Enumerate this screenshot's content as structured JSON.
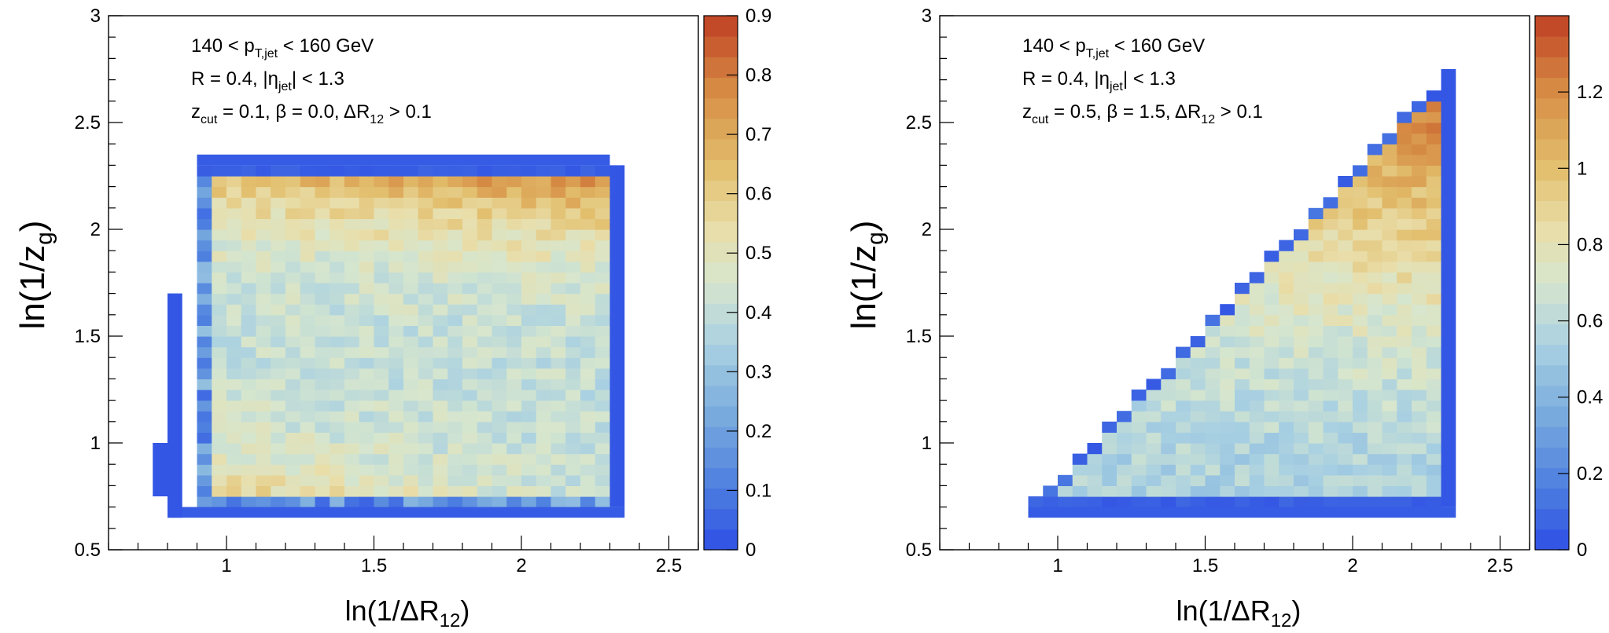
{
  "chart_data": [
    {
      "type": "heatmap",
      "panel": "left",
      "xlabel": {
        "main": "ln(1/ΔR",
        "sub": "12",
        "close": ")"
      },
      "ylabel": {
        "main": "ln(1/z",
        "sub": "g",
        "close": ")"
      },
      "xlim": [
        0.6,
        2.6
      ],
      "ylim": [
        0.5,
        3.0
      ],
      "x_ticks": [
        "1",
        "1.5",
        "2",
        "2.5"
      ],
      "y_ticks": [
        "0.5",
        "1",
        "1.5",
        "2",
        "2.5",
        "3"
      ],
      "colorbar": {
        "min": 0,
        "max": 0.9,
        "ticks": [
          "0",
          "0.1",
          "0.2",
          "0.3",
          "0.4",
          "0.5",
          "0.6",
          "0.7",
          "0.8",
          "0.9"
        ]
      },
      "annotations": [
        {
          "pre": "140 < p",
          "sub": "T,jet",
          "post": " < 160 GeV"
        },
        {
          "pre": "R = 0.4, |η",
          "sub": "jet",
          "post": "| < 1.3"
        },
        {
          "pre": "z",
          "sub": "cut",
          "mid": " = 0.1,   β = 0.0,   ΔR",
          "sub2": "12",
          "post": " > 0.1"
        }
      ],
      "region": {
        "x_range": [
          0.9,
          2.3
        ],
        "y_range": [
          0.7,
          2.3
        ],
        "bins": [
          28,
          32
        ],
        "edge_bins": [
          {
            "x": 0.8,
            "y_min": 0.65,
            "y_max": 1.7,
            "z": 0.02
          },
          {
            "x": 0.75,
            "y_min": 0.75,
            "y_max": 1.0,
            "z": 0.02
          }
        ],
        "z_pattern": "values near 0.4 in central body; rising to ~0.7-0.9 along top band (ln(1/zg) ~ 2.2-2.3) and ~0.6-0.7 along lower-left (ln(1/zg) ~ 0.8-0.9); edge bins ~0.0-0.05"
      }
    },
    {
      "type": "heatmap",
      "panel": "right",
      "xlabel": {
        "main": "ln(1/ΔR",
        "sub": "12",
        "close": ")"
      },
      "ylabel": {
        "main": "ln(1/z",
        "sub": "g",
        "close": ")"
      },
      "xlim": [
        0.6,
        2.6
      ],
      "ylim": [
        0.5,
        3.0
      ],
      "x_ticks": [
        "1",
        "1.5",
        "2",
        "2.5"
      ],
      "y_ticks": [
        "0.5",
        "1",
        "1.5",
        "2",
        "2.5",
        "3"
      ],
      "colorbar": {
        "min": 0,
        "max": 1.4,
        "ticks": [
          "0",
          "0.2",
          "0.4",
          "0.6",
          "0.8",
          "1",
          "1.2"
        ]
      },
      "annotations": [
        {
          "pre": "140 < p",
          "sub": "T,jet",
          "post": " < 160 GeV"
        },
        {
          "pre": "R = 0.4, |η",
          "sub": "jet",
          "post": "| < 1.3"
        },
        {
          "pre": "z",
          "sub": "cut",
          "mid": " = 0.5,   β = 1.5,   ΔR",
          "sub2": "12",
          "post": " > 0.1"
        }
      ],
      "region": {
        "x_range": [
          0.9,
          2.3
        ],
        "y_range": [
          0.7,
          2.75
        ],
        "shape": "triangle with diagonal boundary ln(1/zg) ~ 0.7 + 1.44*(ln(1/dR12) - 0.9)",
        "z_pattern": "values ~0.5-0.7 in lower body; rising to ~1.0-1.3 in upper-right apex near ln(1/dR12) ~ 2.1-2.2, ln(1/zg) ~ 2.2-2.4; edge bins ~0.0-0.1"
      }
    }
  ]
}
